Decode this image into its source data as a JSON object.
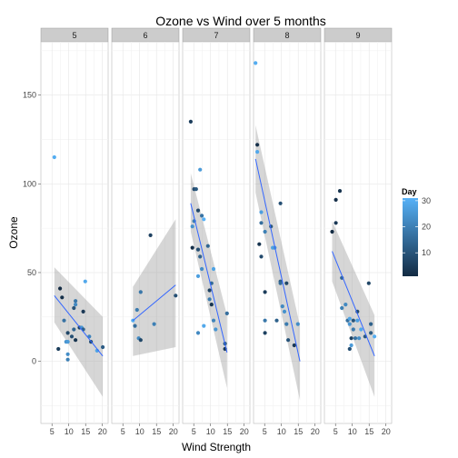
{
  "chart_data": {
    "type": "scatter",
    "title": "Ozone vs Wind over 5 months",
    "xlabel": "Wind Strength",
    "ylabel": "Ozone",
    "xlim": [
      1.7,
      21.7
    ],
    "ylim": [
      -35,
      180
    ],
    "x_ticks": [
      5,
      10,
      15,
      20
    ],
    "y_ticks": [
      0,
      50,
      100,
      150
    ],
    "grid": true,
    "legend": {
      "title": "Day",
      "placement": "right",
      "ticks": [
        10,
        20,
        30
      ],
      "range": [
        1,
        31
      ],
      "colors": {
        "low": "#132B43",
        "high": "#56B1F7"
      }
    },
    "panels": [
      {
        "label": "5",
        "fit": {
          "x": [
            5.7,
            20.1
          ],
          "y": [
            37,
            3
          ],
          "ci_lo": [
            22,
            -20
          ],
          "ci_hi": [
            53,
            25
          ]
        },
        "points": [
          {
            "x": 5.7,
            "y": 115,
            "day": 30
          },
          {
            "x": 6.9,
            "y": 7,
            "day": 5
          },
          {
            "x": 7.4,
            "y": 41,
            "day": 1
          },
          {
            "x": 8.0,
            "y": 36,
            "day": 2
          },
          {
            "x": 8.6,
            "y": 23,
            "day": 17
          },
          {
            "x": 9.2,
            "y": 11,
            "day": 24
          },
          {
            "x": 9.7,
            "y": 1,
            "day": 20
          },
          {
            "x": 9.7,
            "y": 4,
            "day": 23
          },
          {
            "x": 9.7,
            "y": 11,
            "day": 26
          },
          {
            "x": 9.7,
            "y": 16,
            "day": 7
          },
          {
            "x": 10.9,
            "y": 14,
            "day": 9
          },
          {
            "x": 11.5,
            "y": 18,
            "day": 14
          },
          {
            "x": 12.0,
            "y": 12,
            "day": 3
          },
          {
            "x": 11.5,
            "y": 30,
            "day": 10
          },
          {
            "x": 12.0,
            "y": 32,
            "day": 22
          },
          {
            "x": 12.0,
            "y": 34,
            "day": 18
          },
          {
            "x": 13.2,
            "y": 19,
            "day": 6
          },
          {
            "x": 13.8,
            "y": 19,
            "day": 25
          },
          {
            "x": 14.3,
            "y": 28,
            "day": 4
          },
          {
            "x": 14.9,
            "y": 45,
            "day": 29
          },
          {
            "x": 14.3,
            "y": 18,
            "day": 13
          },
          {
            "x": 16.1,
            "y": 14,
            "day": 21
          },
          {
            "x": 16.6,
            "y": 11,
            "day": 8
          },
          {
            "x": 18.4,
            "y": 6,
            "day": 28
          },
          {
            "x": 20.1,
            "y": 8,
            "day": 12
          }
        ]
      },
      {
        "label": "6",
        "fit": {
          "x": [
            8.0,
            20.7
          ],
          "y": [
            23,
            43
          ],
          "ci_lo": [
            3,
            8
          ],
          "ci_hi": [
            42,
            80
          ]
        },
        "points": [
          {
            "x": 8.0,
            "y": 23,
            "day": 30
          },
          {
            "x": 8.6,
            "y": 20,
            "day": 16
          },
          {
            "x": 9.2,
            "y": 29,
            "day": 19
          },
          {
            "x": 9.7,
            "y": 13,
            "day": 22
          },
          {
            "x": 10.3,
            "y": 39,
            "day": 18
          },
          {
            "x": 10.3,
            "y": 12,
            "day": 7
          },
          {
            "x": 13.2,
            "y": 71,
            "day": 6
          },
          {
            "x": 14.3,
            "y": 21,
            "day": 20
          },
          {
            "x": 20.7,
            "y": 37,
            "day": 9
          }
        ]
      },
      {
        "label": "7",
        "fit": {
          "x": [
            4.1,
            14.9
          ],
          "y": [
            89,
            5
          ],
          "ci_lo": [
            73,
            -15
          ],
          "ci_hi": [
            106,
            26
          ]
        },
        "points": [
          {
            "x": 4.1,
            "y": 135,
            "day": 5
          },
          {
            "x": 4.6,
            "y": 64,
            "day": 2
          },
          {
            "x": 4.6,
            "y": 76,
            "day": 24
          },
          {
            "x": 5.1,
            "y": 79,
            "day": 20
          },
          {
            "x": 5.1,
            "y": 97,
            "day": 8
          },
          {
            "x": 5.7,
            "y": 97,
            "day": 11
          },
          {
            "x": 6.3,
            "y": 63,
            "day": 9
          },
          {
            "x": 6.3,
            "y": 85,
            "day": 7
          },
          {
            "x": 6.3,
            "y": 48,
            "day": 27
          },
          {
            "x": 6.3,
            "y": 16,
            "day": 22
          },
          {
            "x": 6.9,
            "y": 108,
            "day": 26
          },
          {
            "x": 7.4,
            "y": 82,
            "day": 17
          },
          {
            "x": 6.9,
            "y": 59,
            "day": 13
          },
          {
            "x": 7.4,
            "y": 52,
            "day": 23
          },
          {
            "x": 8.0,
            "y": 80,
            "day": 31
          },
          {
            "x": 8.0,
            "y": 20,
            "day": 29
          },
          {
            "x": 9.2,
            "y": 65,
            "day": 14
          },
          {
            "x": 9.7,
            "y": 40,
            "day": 6
          },
          {
            "x": 9.7,
            "y": 35,
            "day": 19
          },
          {
            "x": 10.3,
            "y": 44,
            "day": 15
          },
          {
            "x": 10.3,
            "y": 32,
            "day": 3
          },
          {
            "x": 10.9,
            "y": 52,
            "day": 28
          },
          {
            "x": 10.9,
            "y": 23,
            "day": 21
          },
          {
            "x": 11.5,
            "y": 18,
            "day": 25
          },
          {
            "x": 14.3,
            "y": 10,
            "day": 12
          },
          {
            "x": 14.3,
            "y": 7,
            "day": 4
          },
          {
            "x": 14.9,
            "y": 27,
            "day": 16
          }
        ]
      },
      {
        "label": "8",
        "fit": {
          "x": [
            2.3,
            15.5
          ],
          "y": [
            114,
            0
          ],
          "ci_lo": [
            95,
            -22
          ],
          "ci_hi": [
            133,
            20
          ]
        },
        "points": [
          {
            "x": 2.3,
            "y": 168,
            "day": 30
          },
          {
            "x": 2.8,
            "y": 122,
            "day": 2
          },
          {
            "x": 2.8,
            "y": 118,
            "day": 29
          },
          {
            "x": 3.4,
            "y": 66,
            "day": 3
          },
          {
            "x": 4.0,
            "y": 84,
            "day": 27
          },
          {
            "x": 4.0,
            "y": 78,
            "day": 16
          },
          {
            "x": 4.0,
            "y": 59,
            "day": 8
          },
          {
            "x": 5.1,
            "y": 73,
            "day": 20
          },
          {
            "x": 5.1,
            "y": 39,
            "day": 5
          },
          {
            "x": 5.1,
            "y": 16,
            "day": 6
          },
          {
            "x": 5.1,
            "y": 23,
            "day": 18
          },
          {
            "x": 6.9,
            "y": 76,
            "day": 11
          },
          {
            "x": 7.4,
            "y": 64,
            "day": 28
          },
          {
            "x": 8.0,
            "y": 64,
            "day": 25
          },
          {
            "x": 8.6,
            "y": 23,
            "day": 13
          },
          {
            "x": 9.7,
            "y": 89,
            "day": 9
          },
          {
            "x": 9.7,
            "y": 45,
            "day": 12
          },
          {
            "x": 9.7,
            "y": 44,
            "day": 15
          },
          {
            "x": 10.3,
            "y": 31,
            "day": 22
          },
          {
            "x": 10.9,
            "y": 28,
            "day": 24
          },
          {
            "x": 11.5,
            "y": 21,
            "day": 19
          },
          {
            "x": 11.5,
            "y": 44,
            "day": 7
          },
          {
            "x": 12.0,
            "y": 12,
            "day": 10
          },
          {
            "x": 13.8,
            "y": 9,
            "day": 4
          },
          {
            "x": 14.9,
            "y": 21,
            "day": 23
          }
        ]
      },
      {
        "label": "9",
        "fit": {
          "x": [
            4.0,
            16.6
          ],
          "y": [
            62,
            3
          ],
          "ci_lo": [
            45,
            -20
          ],
          "ci_hi": [
            79,
            26
          ]
        },
        "points": [
          {
            "x": 4.0,
            "y": 73,
            "day": 1
          },
          {
            "x": 5.1,
            "y": 91,
            "day": 2
          },
          {
            "x": 5.1,
            "y": 78,
            "day": 4
          },
          {
            "x": 6.3,
            "y": 96,
            "day": 3
          },
          {
            "x": 6.9,
            "y": 47,
            "day": 14
          },
          {
            "x": 6.9,
            "y": 30,
            "day": 20
          },
          {
            "x": 8.0,
            "y": 32,
            "day": 22
          },
          {
            "x": 8.6,
            "y": 23,
            "day": 16
          },
          {
            "x": 9.2,
            "y": 21,
            "day": 25
          },
          {
            "x": 9.2,
            "y": 24,
            "day": 28
          },
          {
            "x": 9.2,
            "y": 7,
            "day": 9
          },
          {
            "x": 9.7,
            "y": 9,
            "day": 26
          },
          {
            "x": 9.7,
            "y": 13,
            "day": 6
          },
          {
            "x": 10.3,
            "y": 23,
            "day": 10
          },
          {
            "x": 10.3,
            "y": 18,
            "day": 19
          },
          {
            "x": 10.9,
            "y": 13,
            "day": 17
          },
          {
            "x": 11.5,
            "y": 23,
            "day": 27
          },
          {
            "x": 11.5,
            "y": 28,
            "day": 8
          },
          {
            "x": 12.0,
            "y": 13,
            "day": 23
          },
          {
            "x": 12.6,
            "y": 18,
            "day": 29
          },
          {
            "x": 13.8,
            "y": 14,
            "day": 11
          },
          {
            "x": 14.9,
            "y": 44,
            "day": 7
          },
          {
            "x": 15.5,
            "y": 16,
            "day": 12
          },
          {
            "x": 15.5,
            "y": 21,
            "day": 13
          },
          {
            "x": 16.6,
            "y": 14,
            "day": 30
          }
        ]
      }
    ]
  }
}
